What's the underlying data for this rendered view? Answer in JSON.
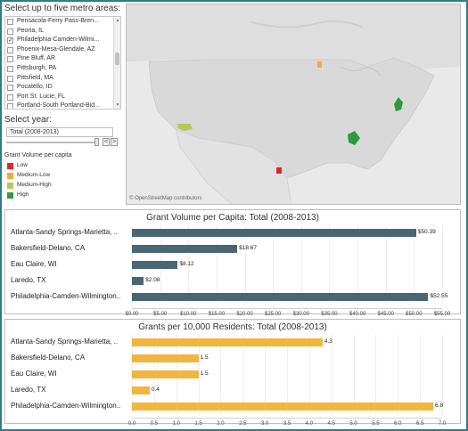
{
  "filters": {
    "metro_title": "Select up to five metro areas:",
    "metro_options": [
      {
        "label": "Pensacola-Ferry Pass-Bren...",
        "checked": false
      },
      {
        "label": "Peoria, IL",
        "checked": false
      },
      {
        "label": "Philadelphia-Camden-Wilmi...",
        "checked": true
      },
      {
        "label": "Phoenix-Mesa-Glendale, AZ",
        "checked": false
      },
      {
        "label": "Pine Bluff, AR",
        "checked": false
      },
      {
        "label": "Pittsburgh, PA",
        "checked": false
      },
      {
        "label": "Pittsfield, MA",
        "checked": false
      },
      {
        "label": "Pocatello, ID",
        "checked": false
      },
      {
        "label": "Port St. Lucie, FL",
        "checked": false
      },
      {
        "label": "Portland-South Portland-Bid...",
        "checked": false
      }
    ],
    "year_title": "Select year:",
    "year_value": "Total (2008-2013)",
    "prev_label": "<",
    "next_label": ">"
  },
  "legend": {
    "title": "Grant Volume per capita",
    "items": [
      {
        "label": "Low",
        "color": "#e0262f"
      },
      {
        "label": "Medium-Low",
        "color": "#f2a93b"
      },
      {
        "label": "Medium-High",
        "color": "#b5c95b"
      },
      {
        "label": "High",
        "color": "#2f9a3f"
      }
    ]
  },
  "map": {
    "attribution": "© OpenStreetMap contributors"
  },
  "chart_data": [
    {
      "type": "bar",
      "title": "Grant Volume per Capita: Total (2008-2013)",
      "categories": [
        "Atlanta-Sandy Springs-Marietta, ..",
        "Bakersfield-Delano, CA",
        "Eau Claire, WI",
        "Laredo, TX",
        "Philadelphia-Camden-Wilmington.."
      ],
      "values": [
        50.39,
        18.67,
        8.12,
        2.08,
        52.55
      ],
      "value_labels": [
        "$50.39",
        "$18.67",
        "$8.12",
        "$2.08",
        "$52.55"
      ],
      "xlim": [
        0,
        55
      ],
      "ticks": [
        "$0.00",
        "$5.00",
        "$10.00",
        "$15.00",
        "$20.00",
        "$25.00",
        "$30.00",
        "$35.00",
        "$40.00",
        "$45.00",
        "$50.00",
        "$55.00"
      ],
      "color": "#4a6674"
    },
    {
      "type": "bar",
      "title": "Grants per 10,000 Residents: Total (2008-2013)",
      "categories": [
        "Atlanta-Sandy Springs-Marietta, ..",
        "Bakersfield-Delano, CA",
        "Eau Claire, WI",
        "Laredo, TX",
        "Philadelphia-Camden-Wilmington.."
      ],
      "values": [
        4.3,
        1.5,
        1.5,
        0.4,
        6.8
      ],
      "value_labels": [
        "4.3",
        "1.5",
        "1.5",
        "0.4",
        "6.8"
      ],
      "xlim": [
        0,
        7
      ],
      "ticks": [
        "0.0",
        "0.5",
        "1.0",
        "1.5",
        "2.0",
        "2.5",
        "3.0",
        "3.5",
        "4.0",
        "4.5",
        "5.0",
        "5.5",
        "6.0",
        "6.5",
        "7.0"
      ],
      "color": "#f0b640"
    }
  ]
}
